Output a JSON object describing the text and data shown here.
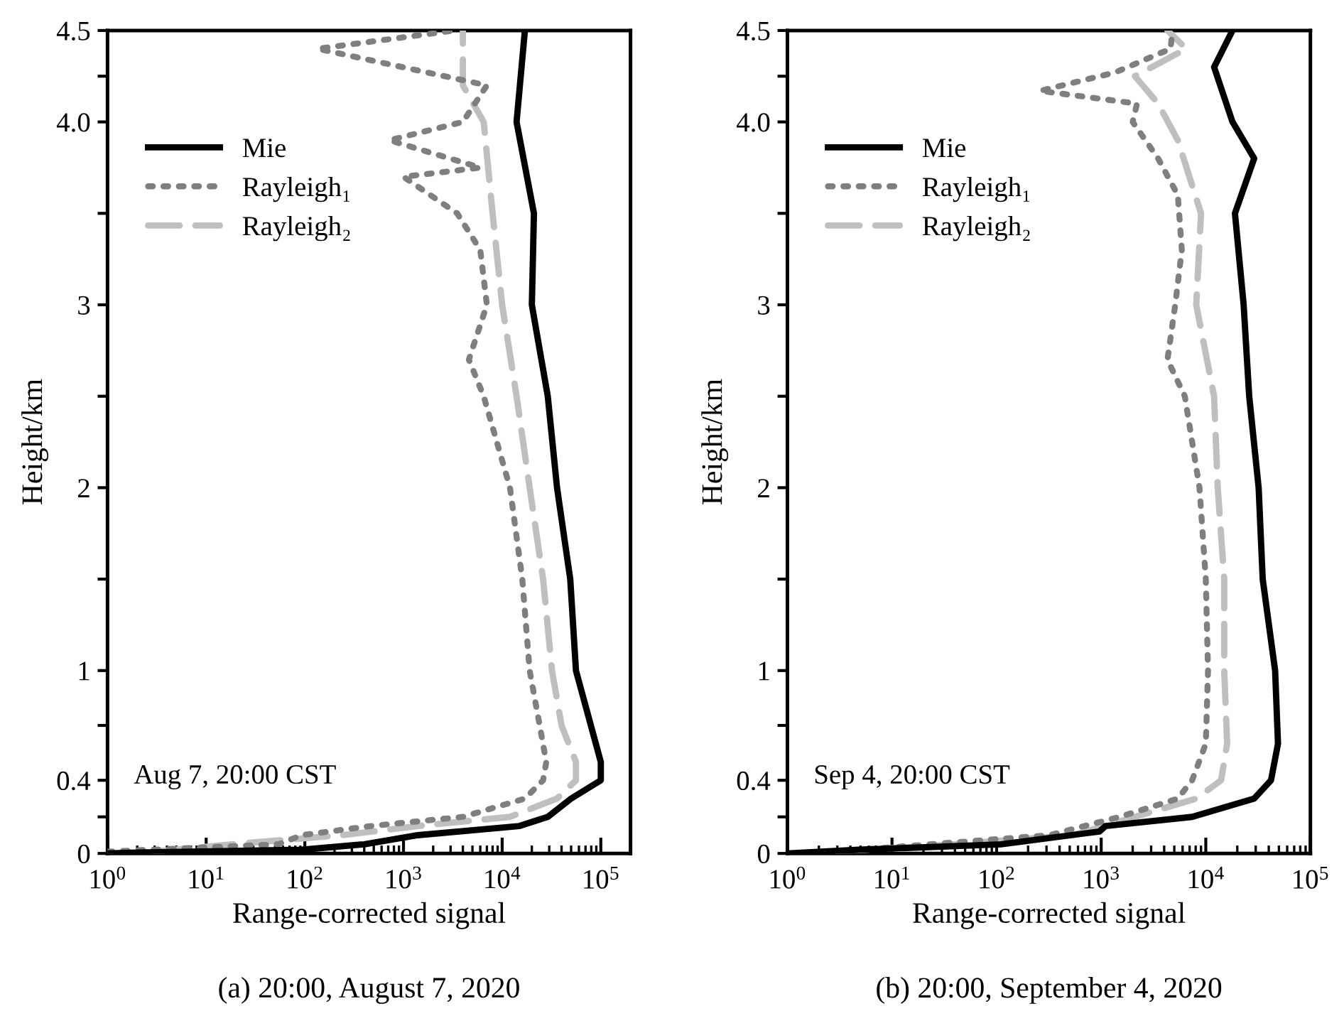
{
  "chart_data": [
    {
      "type": "line",
      "xlabel": "Range-corrected signal",
      "ylabel": "Height/km",
      "annotations": [
        "Aug 7, 20:00 CST",
        "(a) 20:00, August 7, 2020"
      ],
      "log": "x",
      "xlim": [
        1,
        200000
      ],
      "xticks": [
        {
          "value": 1,
          "label": "10$^{0}$"
        },
        {
          "value": 10,
          "label": "10$^{1}$"
        },
        {
          "value": 100,
          "label": "10$^{2}$"
        },
        {
          "value": 1000,
          "label": "10$^{3}$"
        },
        {
          "value": 10000,
          "label": "10$^{4}$"
        },
        {
          "value": 100000,
          "label": "10$^{5}$"
        }
      ],
      "ylim": [
        0,
        4.5
      ],
      "yticks": [
        0,
        {
          "value": 0.2,
          "label": null
        },
        0.4,
        {
          "value": 0.7,
          "label": null
        },
        1,
        {
          "value": 1.5,
          "label": null
        },
        2,
        {
          "value": 2.5,
          "label": null
        },
        3,
        {
          "value": 3.5,
          "label": null
        },
        {
          "value": 4,
          "label": "4.0"
        },
        {
          "value": 4.25,
          "label": null
        },
        4.5
      ],
      "legend": "top left",
      "grid": false,
      "marker": "none",
      "series": [
        {
          "name": "Mie",
          "color": "#000000",
          "line_style": "solid",
          "x": [
            1,
            2,
            93,
            400,
            1400,
            15000,
            29000,
            50000,
            100000,
            100000,
            56000,
            49000,
            36000,
            29000,
            20000,
            21000,
            14000,
            17000
          ],
          "values": [
            0,
            0.005,
            0.02,
            0.05,
            0.1,
            0.15,
            0.2,
            0.3,
            0.4,
            0.5,
            1,
            1.5,
            2,
            2.5,
            3,
            3.5,
            4,
            4.5
          ]
        },
        {
          "name": "Rayleigh₁",
          "color": "#7f7f7f",
          "line_style": "dotted",
          "x": [
            1,
            54,
            93,
            470,
            4000,
            17000,
            26000,
            28000,
            24000,
            19000,
            16000,
            12000,
            6500,
            4600,
            7000,
            6000,
            3500,
            1000,
            6000,
            720,
            4000,
            7000,
            135,
            3300
          ],
          "values": [
            0.01,
            0.05,
            0.1,
            0.15,
            0.2,
            0.3,
            0.4,
            0.5,
            0.7,
            1,
            1.5,
            2,
            2.5,
            2.7,
            3,
            3.3,
            3.5,
            3.7,
            3.75,
            3.9,
            4,
            4.2,
            4.4,
            4.5
          ]
        },
        {
          "name": "Rayleigh₂",
          "color": "#bfbfbf",
          "line_style": "dashed",
          "x": [
            3,
            18,
            240,
            1400,
            12000,
            36000,
            56000,
            56000,
            40000,
            32000,
            26000,
            19000,
            14000,
            10000,
            8000,
            6500,
            4000,
            4000
          ],
          "values": [
            0.01,
            0.05,
            0.1,
            0.15,
            0.2,
            0.3,
            0.4,
            0.5,
            0.7,
            1,
            1.5,
            2,
            2.5,
            3,
            3.5,
            4,
            4.2,
            4.5
          ]
        }
      ]
    },
    {
      "type": "line",
      "xlabel": "Range-corrected signal",
      "ylabel": "Height/km",
      "annotations": [
        "Sep 4, 20:00 CST",
        "(b) 20:00, September 4, 2020"
      ],
      "log": "x",
      "xlim": [
        1,
        100000
      ],
      "xticks": [
        {
          "value": 1,
          "label": "10$^{0}$"
        },
        {
          "value": 10,
          "label": "10$^{1}$"
        },
        {
          "value": 100,
          "label": "10$^{2}$"
        },
        {
          "value": 1000,
          "label": "10$^{3}$"
        },
        {
          "value": 10000,
          "label": "10$^{4}$"
        },
        {
          "value": 100000,
          "label": "10$^{5}$"
        }
      ],
      "ylim": [
        0,
        4.5
      ],
      "yticks": [
        0,
        {
          "value": 0.2,
          "label": null
        },
        0.4,
        {
          "value": 0.7,
          "label": null
        },
        1,
        {
          "value": 1.5,
          "label": null
        },
        2,
        {
          "value": 2.5,
          "label": null
        },
        3,
        {
          "value": 3.5,
          "label": null
        },
        {
          "value": 4,
          "label": "4.0"
        },
        {
          "value": 4.25,
          "label": null
        },
        4.5
      ],
      "legend": "top left",
      "grid": false,
      "marker": "none",
      "series": [
        {
          "name": "Mie",
          "color": "#000000",
          "line_style": "solid",
          "x": [
            1,
            4.8,
            110,
            960,
            1100,
            7400,
            29000,
            42000,
            49000,
            46000,
            35000,
            32000,
            26000,
            23000,
            19000,
            29000,
            18000,
            12000,
            18000
          ],
          "values": [
            0,
            0.02,
            0.05,
            0.12,
            0.15,
            0.2,
            0.3,
            0.4,
            0.6,
            1,
            1.5,
            2,
            2.5,
            3,
            3.5,
            3.8,
            4,
            4.3,
            4.5
          ]
        },
        {
          "name": "Rayleigh₁",
          "color": "#7f7f7f",
          "line_style": "dotted",
          "x": [
            3,
            23,
            320,
            1500,
            5400,
            7400,
            10000,
            10500,
            10000,
            8700,
            6300,
            4300,
            5100,
            5900,
            5400,
            3500,
            2000,
            2200,
            260,
            1350,
            4600,
            4800
          ],
          "values": [
            0.01,
            0.05,
            0.1,
            0.2,
            0.3,
            0.4,
            0.6,
            1,
            1.5,
            2,
            2.5,
            2.7,
            3,
            3.3,
            3.6,
            3.8,
            4,
            4.1,
            4.17,
            4.27,
            4.4,
            4.5
          ]
        },
        {
          "name": "Rayleigh₂",
          "color": "#bfbfbf",
          "line_style": "dashed",
          "x": [
            3,
            39,
            540,
            2100,
            8100,
            14000,
            16000,
            15000,
            15000,
            13000,
            12000,
            8100,
            9000,
            5400,
            3500,
            2100,
            6500,
            4300
          ],
          "values": [
            0.01,
            0.05,
            0.1,
            0.2,
            0.3,
            0.4,
            0.6,
            1,
            1.5,
            2,
            2.5,
            3,
            3.5,
            3.9,
            4.1,
            4.25,
            4.4,
            4.5
          ]
        }
      ]
    }
  ]
}
